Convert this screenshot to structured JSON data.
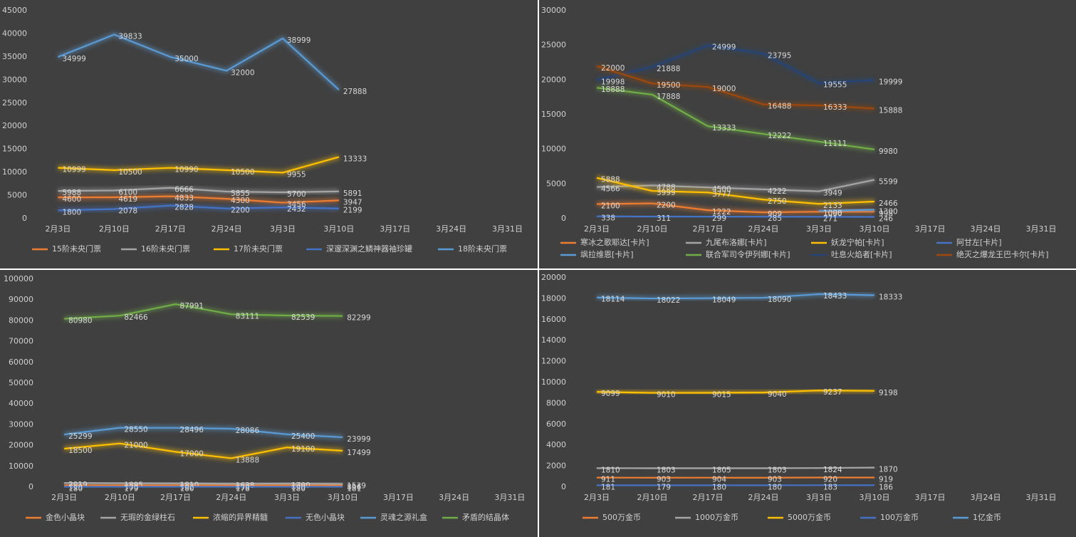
{
  "chart_data": [
    {
      "type": "line",
      "legend": "bottom",
      "grid": false,
      "categories": [
        "2月3日",
        "2月10日",
        "2月17日",
        "2月24日",
        "3月3日",
        "3月10日",
        "3月17日",
        "3月24日",
        "3月31日"
      ],
      "ylim": [
        0,
        45000
      ],
      "yticks": [
        0,
        5000,
        10000,
        15000,
        20000,
        25000,
        30000,
        35000,
        40000,
        45000
      ],
      "series": [
        {
          "name": "15阶未央门票",
          "color": "#ed7d31",
          "values": [
            4600,
            4619,
            4833,
            4300,
            3456,
            3947,
            null,
            null,
            null
          ]
        },
        {
          "name": "16阶未央门票",
          "color": "#a5a5a5",
          "values": [
            5988,
            6100,
            6666,
            5855,
            5700,
            5891,
            null,
            null,
            null
          ]
        },
        {
          "name": "17阶未央门票",
          "color": "#ffc000",
          "values": [
            10999,
            10500,
            10990,
            10500,
            9955,
            13333,
            null,
            null,
            null
          ]
        },
        {
          "name": "深邃深渊之鳞神器袖珍罐",
          "color": "#4472c4",
          "values": [
            1800,
            2078,
            2828,
            2200,
            2432,
            2199,
            null,
            null,
            null
          ]
        },
        {
          "name": "18阶未央门票",
          "color": "#5b9bd5",
          "values": [
            34999,
            39833,
            35000,
            32000,
            38999,
            27888,
            null,
            null,
            null
          ]
        }
      ]
    },
    {
      "type": "line",
      "legend": "bottom",
      "grid": false,
      "categories": [
        "2月3日",
        "2月10日",
        "2月17日",
        "2月24日",
        "3月3日",
        "3月10日",
        "3月17日",
        "3月24日",
        "3月31日"
      ],
      "ylim": [
        0,
        30000
      ],
      "yticks": [
        0,
        5000,
        10000,
        15000,
        20000,
        25000,
        30000
      ],
      "series": [
        {
          "name": "寒冰之歌耶达[卡片]",
          "color": "#ed7d31",
          "values": [
            2100,
            2200,
            1222,
            909,
            1000,
            998,
            null,
            null,
            null
          ]
        },
        {
          "name": "九尾布洛娜[卡片]",
          "color": "#a5a5a5",
          "values": [
            4566,
            4788,
            4500,
            4222,
            3949,
            5599,
            null,
            null,
            null
          ]
        },
        {
          "name": "妖龙宁帕[卡片]",
          "color": "#ffc000",
          "values": [
            5888,
            3999,
            3777,
            2750,
            2133,
            2466,
            null,
            null,
            null
          ]
        },
        {
          "name": "阿甘左[卡片]",
          "color": "#4472c4",
          "values": [
            338,
            311,
            299,
            285,
            271,
            246,
            null,
            null,
            null
          ]
        },
        {
          "name": "飒拉维恩[卡片]",
          "color": "#5b9bd5",
          "values": [
            null,
            null,
            null,
            null,
            1098,
            1300,
            null,
            null,
            null
          ]
        },
        {
          "name": "联合军司令伊列娜[卡片]",
          "color": "#70ad47",
          "values": [
            18888,
            17888,
            13333,
            12222,
            11111,
            9980,
            null,
            null,
            null
          ]
        },
        {
          "name": "吐息火焰者[卡片]",
          "color": "#264478",
          "values": [
            19998,
            21888,
            24999,
            23795,
            19555,
            19999,
            null,
            null,
            null
          ]
        },
        {
          "name": "绝灭之爆龙王巴卡尔[卡片]",
          "color": "#9e480e",
          "values": [
            22000,
            19500,
            19000,
            16488,
            16333,
            15888,
            null,
            null,
            null
          ]
        }
      ]
    },
    {
      "type": "line",
      "legend": "bottom",
      "grid": false,
      "categories": [
        "2月3日",
        "2月10日",
        "2月17日",
        "2月24日",
        "3月3日",
        "3月10日",
        "3月17日",
        "3月24日",
        "3月31日"
      ],
      "ylim": [
        0,
        100000
      ],
      "yticks": [
        0,
        10000,
        20000,
        30000,
        40000,
        50000,
        60000,
        70000,
        80000,
        90000,
        100000
      ],
      "series": [
        {
          "name": "金色小晶块",
          "color": "#ed7d31",
          "values": [
            919,
            905,
            902,
            898,
            890,
            896,
            null,
            null,
            null
          ]
        },
        {
          "name": "无瑕的金绿柱石",
          "color": "#a5a5a5",
          "values": [
            2019,
            1895,
            1810,
            1638,
            1700,
            1539,
            null,
            null,
            null
          ]
        },
        {
          "name": "浓缩的异界精髓",
          "color": "#ffc000",
          "values": [
            18500,
            21000,
            17000,
            13888,
            19100,
            17499,
            null,
            null,
            null
          ]
        },
        {
          "name": "无色小晶块",
          "color": "#4472c4",
          "values": [
            180,
            179,
            180,
            178,
            180,
            181,
            null,
            null,
            null
          ]
        },
        {
          "name": "灵魂之源礼盒",
          "color": "#5b9bd5",
          "values": [
            25299,
            28550,
            28496,
            28086,
            25400,
            23999,
            null,
            null,
            null
          ]
        },
        {
          "name": "矛盾的结晶体",
          "color": "#70ad47",
          "values": [
            80980,
            82466,
            87991,
            83111,
            82539,
            82299,
            null,
            null,
            null
          ]
        }
      ]
    },
    {
      "type": "line",
      "legend": "bottom",
      "grid": false,
      "categories": [
        "2月3日",
        "2月10日",
        "2月17日",
        "2月24日",
        "3月3日",
        "3月10日",
        "3月17日",
        "3月24日",
        "3月31日"
      ],
      "ylim": [
        0,
        20000
      ],
      "yticks": [
        0,
        2000,
        4000,
        6000,
        8000,
        10000,
        12000,
        14000,
        16000,
        18000,
        20000
      ],
      "series": [
        {
          "name": "500万金币",
          "color": "#ed7d31",
          "values": [
            911,
            903,
            904,
            903,
            920,
            919,
            null,
            null,
            null
          ]
        },
        {
          "name": "1000万金币",
          "color": "#a5a5a5",
          "values": [
            1810,
            1803,
            1805,
            1803,
            1824,
            1870,
            null,
            null,
            null
          ]
        },
        {
          "name": "5000万金币",
          "color": "#ffc000",
          "values": [
            9099,
            9010,
            9015,
            9040,
            9237,
            9198,
            null,
            null,
            null
          ]
        },
        {
          "name": "100万金币",
          "color": "#4472c4",
          "values": [
            181,
            179,
            180,
            180,
            183,
            186,
            null,
            null,
            null
          ]
        },
        {
          "name": "1亿金币",
          "color": "#5b9bd5",
          "values": [
            18114,
            18022,
            18049,
            18090,
            18433,
            18333,
            null,
            null,
            null
          ]
        }
      ]
    }
  ]
}
